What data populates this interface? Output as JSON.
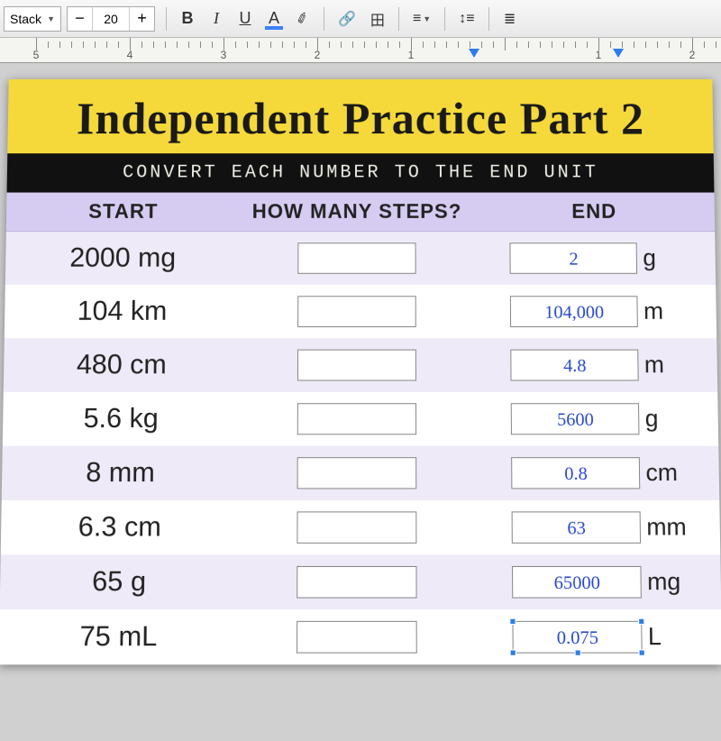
{
  "toolbar": {
    "font_name": "Stack",
    "font_size": "20",
    "bold": "B",
    "italic": "I",
    "underline": "U",
    "textcolor": "A",
    "highlight": "✎",
    "link": "⊂⊃",
    "table": "田",
    "align": "≡",
    "linespacing": "↕≡",
    "bullets": "≣"
  },
  "ruler": {
    "labels": [
      "5",
      "4",
      "3",
      "2",
      "1",
      "",
      "1",
      "2"
    ]
  },
  "doc": {
    "title": "Independent Practice Part 2",
    "subtitle": "CONVERT EACH NUMBER TO THE END UNIT",
    "headers": {
      "start": "START",
      "steps": "HOW MANY STEPS?",
      "end": "END"
    },
    "rows": [
      {
        "start": "2000 mg",
        "steps": "",
        "answer": "2",
        "end_unit": "g"
      },
      {
        "start": "104 km",
        "steps": "",
        "answer": "104,000",
        "end_unit": "m"
      },
      {
        "start": "480 cm",
        "steps": "",
        "answer": "4.8",
        "end_unit": "m"
      },
      {
        "start": "5.6 kg",
        "steps": "",
        "answer": "5600",
        "end_unit": "g"
      },
      {
        "start": "8 mm",
        "steps": "",
        "answer": "0.8",
        "end_unit": "cm"
      },
      {
        "start": "6.3 cm",
        "steps": "",
        "answer": "63",
        "end_unit": "mm"
      },
      {
        "start": "65 g",
        "steps": "",
        "answer": "65000",
        "end_unit": "mg"
      },
      {
        "start": "75 mL",
        "steps": "",
        "answer": "0.075",
        "end_unit": "L"
      }
    ]
  }
}
